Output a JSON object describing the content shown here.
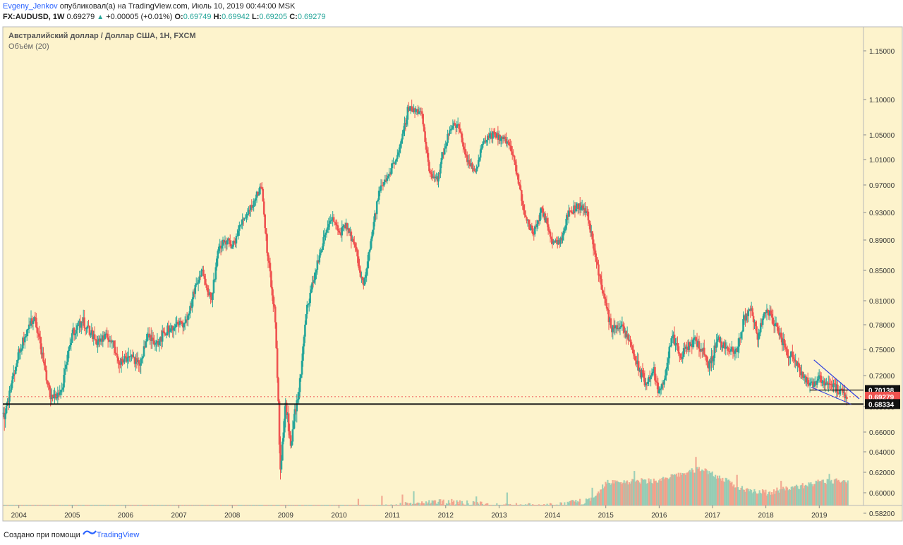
{
  "header": {
    "author": "Evgeny_Jenkov",
    "published_text": "опубликовал(а) на TradingView.com, Июль 10, 2019 00:44:00 MSK",
    "symbol": "FX:AUDUSD, 1W",
    "last": "0.69279",
    "change_arrow": "▲",
    "change": "+0.00005 (+0.01%)",
    "o_label": "O:",
    "o_value": "0.69749",
    "h_label": "H:",
    "h_value": "0.69942",
    "l_label": "L:",
    "l_value": "0.69205",
    "c_label": "C:",
    "c_value": "0.69279"
  },
  "chart_data": {
    "type": "candlestick",
    "title": "Австралийский доллар / Доллар США, 1Н, FXCM",
    "subtitle": "Объём (20)",
    "y_ticks": [
      "1.15000",
      "1.10000",
      "1.05000",
      "1.01000",
      "0.97000",
      "0.93000",
      "0.89000",
      "0.85000",
      "0.81000",
      "0.78000",
      "0.75000",
      "0.72000",
      "0.68000",
      "0.66000",
      "0.64000",
      "0.62000",
      "0.60000",
      "0.58200"
    ],
    "x_ticks": [
      "2004",
      "2005",
      "2006",
      "2007",
      "2008",
      "2009",
      "2010",
      "2011",
      "2012",
      "2013",
      "2014",
      "2015",
      "2016",
      "2017",
      "2018",
      "2019"
    ],
    "price_path": [
      [
        2003.75,
        0.675
      ],
      [
        2003.95,
        0.735
      ],
      [
        2004.15,
        0.775
      ],
      [
        2004.3,
        0.79
      ],
      [
        2004.45,
        0.74
      ],
      [
        2004.6,
        0.69
      ],
      [
        2004.8,
        0.7
      ],
      [
        2005.0,
        0.77
      ],
      [
        2005.2,
        0.785
      ],
      [
        2005.45,
        0.76
      ],
      [
        2005.7,
        0.765
      ],
      [
        2005.9,
        0.735
      ],
      [
        2006.1,
        0.745
      ],
      [
        2006.25,
        0.73
      ],
      [
        2006.4,
        0.765
      ],
      [
        2006.6,
        0.76
      ],
      [
        2006.8,
        0.775
      ],
      [
        2007.0,
        0.78
      ],
      [
        2007.15,
        0.785
      ],
      [
        2007.3,
        0.825
      ],
      [
        2007.45,
        0.85
      ],
      [
        2007.6,
        0.81
      ],
      [
        2007.75,
        0.88
      ],
      [
        2007.9,
        0.89
      ],
      [
        2008.0,
        0.88
      ],
      [
        2008.2,
        0.92
      ],
      [
        2008.4,
        0.945
      ],
      [
        2008.55,
        0.97
      ],
      [
        2008.65,
        0.88
      ],
      [
        2008.8,
        0.79
      ],
      [
        2008.9,
        0.62
      ],
      [
        2009.0,
        0.68
      ],
      [
        2009.1,
        0.65
      ],
      [
        2009.25,
        0.7
      ],
      [
        2009.4,
        0.8
      ],
      [
        2009.6,
        0.86
      ],
      [
        2009.75,
        0.9
      ],
      [
        2009.85,
        0.925
      ],
      [
        2010.0,
        0.9
      ],
      [
        2010.15,
        0.91
      ],
      [
        2010.3,
        0.88
      ],
      [
        2010.45,
        0.83
      ],
      [
        2010.6,
        0.89
      ],
      [
        2010.75,
        0.96
      ],
      [
        2010.95,
        0.99
      ],
      [
        2011.15,
        1.03
      ],
      [
        2011.3,
        1.09
      ],
      [
        2011.55,
        1.08
      ],
      [
        2011.7,
        0.99
      ],
      [
        2011.85,
        0.98
      ],
      [
        2011.95,
        1.02
      ],
      [
        2012.1,
        1.065
      ],
      [
        2012.25,
        1.06
      ],
      [
        2012.4,
        1.01
      ],
      [
        2012.55,
        0.99
      ],
      [
        2012.7,
        1.04
      ],
      [
        2012.85,
        1.05
      ],
      [
        2013.05,
        1.045
      ],
      [
        2013.2,
        1.035
      ],
      [
        2013.35,
        0.98
      ],
      [
        2013.5,
        0.92
      ],
      [
        2013.65,
        0.9
      ],
      [
        2013.8,
        0.935
      ],
      [
        2013.95,
        0.9
      ],
      [
        2014.0,
        0.89
      ],
      [
        2014.15,
        0.89
      ],
      [
        2014.3,
        0.93
      ],
      [
        2014.5,
        0.94
      ],
      [
        2014.65,
        0.93
      ],
      [
        2014.8,
        0.87
      ],
      [
        2014.95,
        0.82
      ],
      [
        2015.1,
        0.775
      ],
      [
        2015.25,
        0.78
      ],
      [
        2015.45,
        0.76
      ],
      [
        2015.6,
        0.73
      ],
      [
        2015.75,
        0.71
      ],
      [
        2015.9,
        0.725
      ],
      [
        2016.0,
        0.695
      ],
      [
        2016.1,
        0.72
      ],
      [
        2016.25,
        0.765
      ],
      [
        2016.4,
        0.74
      ],
      [
        2016.55,
        0.755
      ],
      [
        2016.7,
        0.76
      ],
      [
        2016.85,
        0.745
      ],
      [
        2016.95,
        0.73
      ],
      [
        2017.1,
        0.765
      ],
      [
        2017.25,
        0.75
      ],
      [
        2017.45,
        0.745
      ],
      [
        2017.6,
        0.79
      ],
      [
        2017.72,
        0.8
      ],
      [
        2017.85,
        0.765
      ],
      [
        2018.0,
        0.8
      ],
      [
        2018.1,
        0.79
      ],
      [
        2018.25,
        0.77
      ],
      [
        2018.4,
        0.745
      ],
      [
        2018.55,
        0.74
      ],
      [
        2018.7,
        0.72
      ],
      [
        2018.85,
        0.705
      ],
      [
        2019.0,
        0.72
      ],
      [
        2019.1,
        0.71
      ],
      [
        2019.25,
        0.71
      ],
      [
        2019.35,
        0.7
      ],
      [
        2019.5,
        0.693
      ]
    ],
    "current_price": "0.69279",
    "support_level": "0.68334",
    "resistance_level": "0.70138",
    "channel_upper": [
      [
        2018.9,
        0.738
      ],
      [
        2019.75,
        0.69
      ]
    ],
    "channel_lower": [
      [
        2018.85,
        0.705
      ],
      [
        2019.6,
        0.683
      ]
    ],
    "volume_axis_range": [
      0.57,
      0.67
    ],
    "volume_profile": [
      [
        2004.0,
        0.572
      ],
      [
        2006.0,
        0.572
      ],
      [
        2007.0,
        0.574
      ],
      [
        2008.0,
        0.576
      ],
      [
        2008.9,
        0.579
      ],
      [
        2009.5,
        0.58
      ],
      [
        2010.0,
        0.583
      ],
      [
        2010.5,
        0.586
      ],
      [
        2011.0,
        0.588
      ],
      [
        2011.5,
        0.59
      ],
      [
        2012.0,
        0.592
      ],
      [
        2013.0,
        0.588
      ],
      [
        2014.0,
        0.588
      ],
      [
        2014.8,
        0.594
      ],
      [
        2015.0,
        0.61
      ],
      [
        2016.0,
        0.612
      ],
      [
        2016.8,
        0.624
      ],
      [
        2017.5,
        0.605
      ],
      [
        2018.0,
        0.6
      ],
      [
        2018.5,
        0.605
      ],
      [
        2019.0,
        0.61
      ],
      [
        2019.45,
        0.612
      ]
    ]
  },
  "footer": {
    "created_with": "Создано при помощи",
    "brand": "TradingView"
  }
}
